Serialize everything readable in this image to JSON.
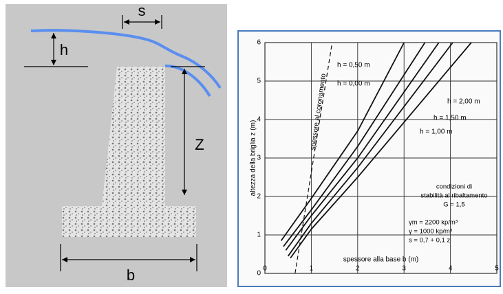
{
  "diagram": {
    "labels": {
      "s": "s",
      "h": "h",
      "z": "Z",
      "b": "b"
    }
  },
  "chart_data": {
    "type": "line",
    "xlabel": "spessore alla base b (m)",
    "ylabel": "altezza della briglia z (m)",
    "xlim": [
      0,
      5
    ],
    "ylim": [
      0,
      6
    ],
    "xticks": [
      0,
      1,
      2,
      3,
      4,
      5
    ],
    "yticks": [
      0,
      1,
      2,
      3,
      4,
      5,
      6
    ],
    "grid": true,
    "series": [
      {
        "name": "h = 0,50 m",
        "color": "#111111",
        "x": [
          0.35,
          1,
          2,
          3.0
        ],
        "values": [
          0.85,
          1.95,
          3.7,
          6
        ]
      },
      {
        "name": "h = 0,00 m",
        "color": "#111111",
        "x": [
          0.4,
          1,
          2,
          3.45
        ],
        "values": [
          0.7,
          1.65,
          3.3,
          6
        ]
      },
      {
        "name": "h = 2,00 m",
        "color": "#111111",
        "x": [
          0.45,
          1,
          2,
          3.75
        ],
        "values": [
          0.6,
          1.5,
          3.0,
          6
        ]
      },
      {
        "name": "h = 1,50 m",
        "color": "#111111",
        "x": [
          0.5,
          1,
          2,
          4.05
        ],
        "values": [
          0.45,
          1.3,
          2.75,
          6
        ]
      },
      {
        "name": "h = 1,00 m",
        "color": "#111111",
        "x": [
          0.55,
          1,
          2,
          4.45
        ],
        "values": [
          0.4,
          1.15,
          2.5,
          6
        ]
      },
      {
        "name": "spessore al coronamento",
        "color": "#111111",
        "dashed": true,
        "x": [
          0.65,
          1.45
        ],
        "values": [
          0,
          6
        ]
      }
    ],
    "annotations": [
      "condizioni di",
      "stabilità al ribaltamento",
      "G = 1,5",
      "γm = 2200 kp/m³",
      "γ = 1000 kp/m³",
      "s = 0,7 + 0,1 z"
    ]
  }
}
